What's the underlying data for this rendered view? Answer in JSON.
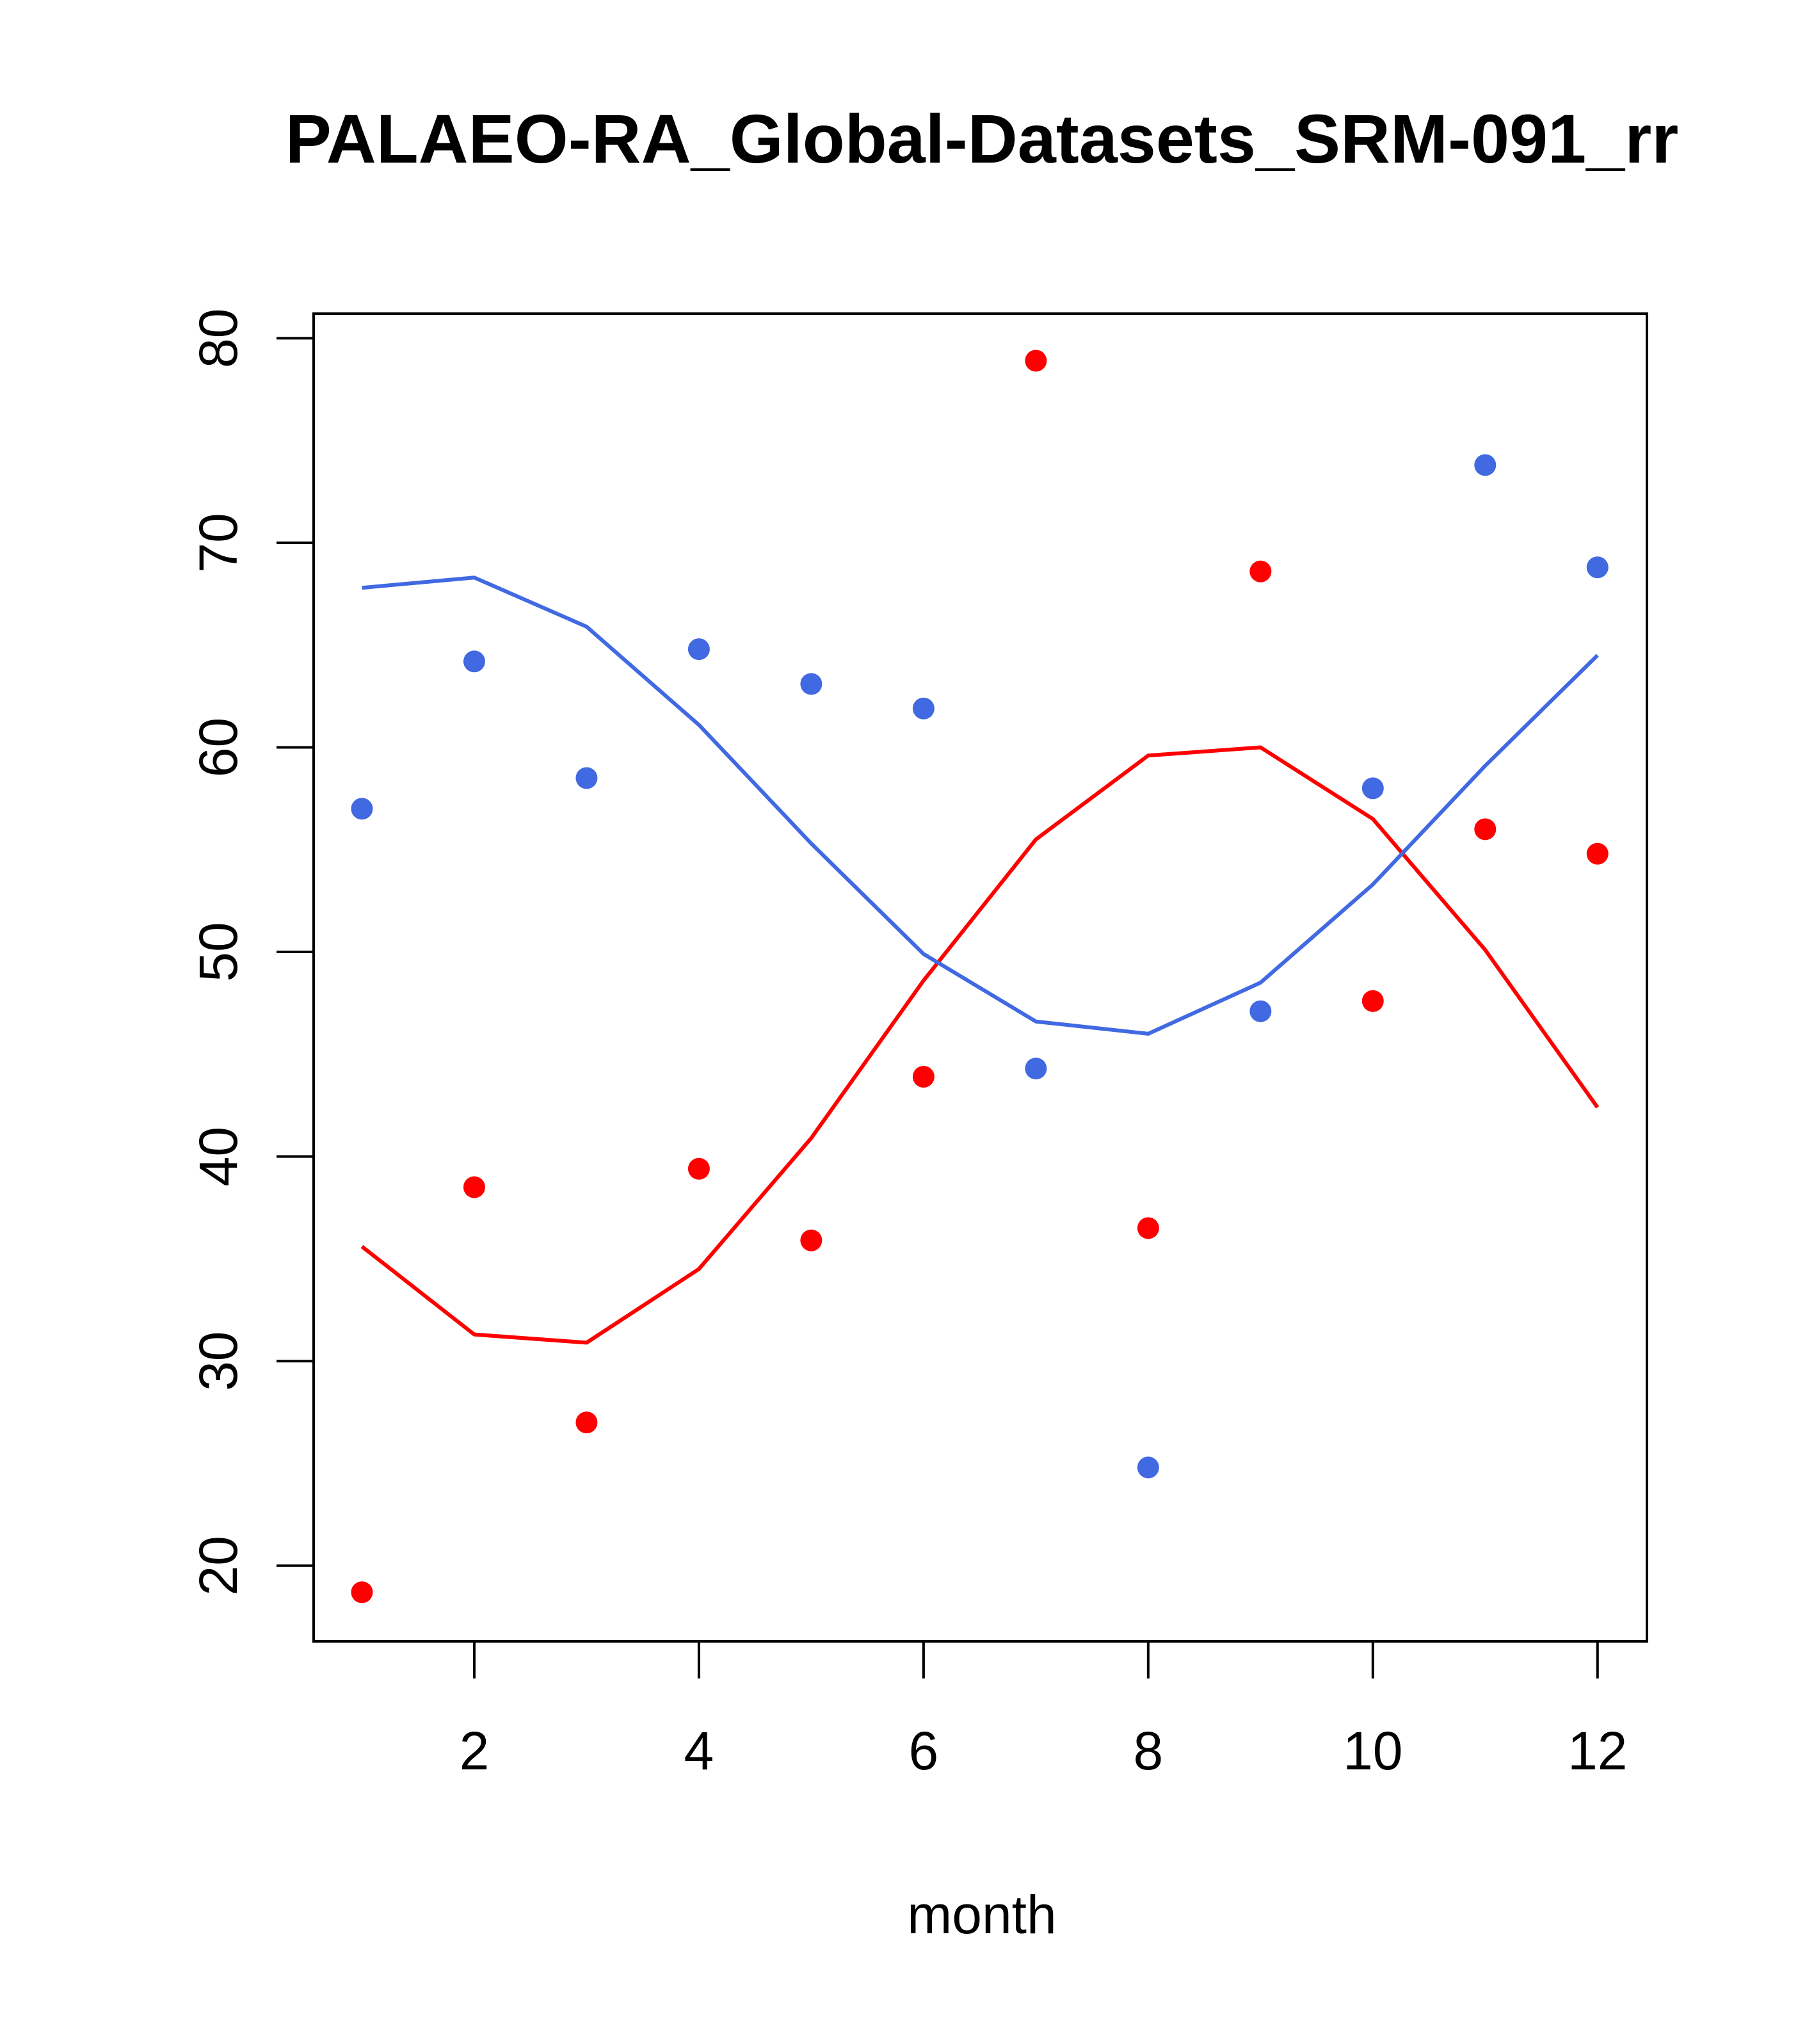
{
  "chart_data": {
    "type": "scatter",
    "title": "PALAEO-RA_Global-Datasets_SRM-091_rr",
    "xlabel": "month",
    "ylabel": "",
    "xlim": [
      0.57,
      12.44
    ],
    "ylim": [
      16.3,
      81.2
    ],
    "x_ticks": [
      2,
      4,
      6,
      8,
      10,
      12
    ],
    "y_ticks": [
      20,
      30,
      40,
      50,
      60,
      70,
      80
    ],
    "grid": false,
    "legend": "none",
    "x": [
      1,
      2,
      3,
      4,
      5,
      6,
      7,
      8,
      9,
      10,
      11,
      12
    ],
    "series": [
      {
        "kind": "points",
        "color": "#ff0000",
        "values": [
          18.7,
          38.5,
          27.0,
          39.4,
          35.9,
          43.9,
          78.9,
          36.5,
          68.6,
          47.6,
          56.0,
          54.8
        ]
      },
      {
        "kind": "points",
        "color": "#4169e1",
        "values": [
          57.0,
          64.2,
          58.5,
          64.8,
          63.1,
          61.9,
          44.3,
          24.8,
          47.1,
          58.0,
          73.8,
          68.8
        ]
      },
      {
        "kind": "line",
        "color": "#ff0000",
        "values": [
          35.6,
          31.3,
          30.9,
          34.5,
          40.9,
          48.6,
          55.5,
          59.6,
          60.0,
          56.5,
          50.1,
          42.4
        ]
      },
      {
        "kind": "line",
        "color": "#4169e1",
        "values": [
          67.8,
          68.3,
          65.9,
          61.1,
          55.3,
          49.9,
          46.6,
          46.0,
          48.5,
          53.3,
          59.1,
          64.5
        ]
      }
    ]
  }
}
